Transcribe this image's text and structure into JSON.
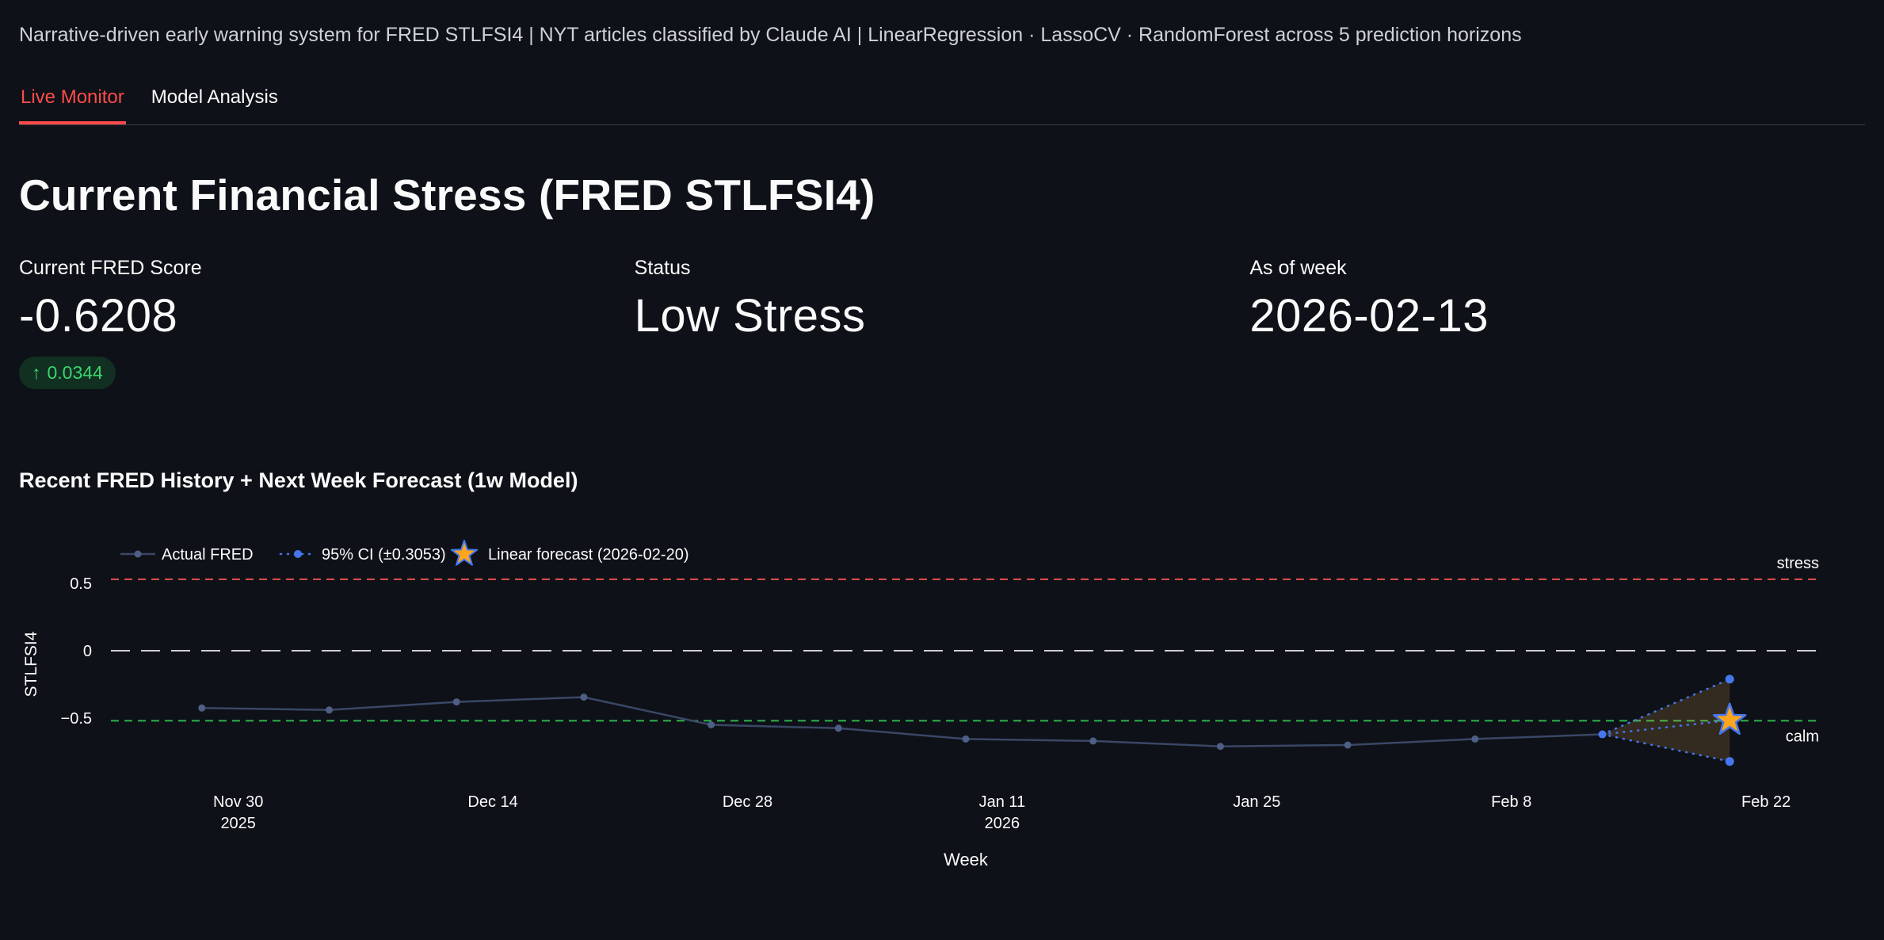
{
  "header": {
    "caption": "Narrative-driven early warning system for FRED STLFSI4 | NYT articles classified by Claude AI | LinearRegression · LassoCV · RandomForest across 5 prediction horizons"
  },
  "tabs": [
    {
      "label": "Live Monitor",
      "active": true
    },
    {
      "label": "Model Analysis",
      "active": false
    }
  ],
  "page_title": "Current Financial Stress (FRED STLFSI4)",
  "metrics": [
    {
      "label": "Current FRED Score",
      "value": "-0.6208",
      "delta_arrow": "↑",
      "delta": "0.0344",
      "delta_color": "#3dd56d"
    },
    {
      "label": "Status",
      "value": "Low Stress"
    },
    {
      "label": "As of week",
      "value": "2026-02-13"
    }
  ],
  "chart_data": {
    "type": "line",
    "title": "Recent FRED History + Next Week Forecast (1w Model)",
    "xlabel": "Week",
    "ylabel": "STLFSI4",
    "ylim": [
      -0.9,
      0.7
    ],
    "x_range": [
      "2025-11-23",
      "2026-02-25"
    ],
    "grid": false,
    "legend_position": "top-left",
    "x_ticks": [
      {
        "date": "2025-11-30",
        "label": "Nov 30",
        "sublabel": "2025"
      },
      {
        "date": "2025-12-14",
        "label": "Dec 14",
        "sublabel": ""
      },
      {
        "date": "2025-12-28",
        "label": "Dec 28",
        "sublabel": ""
      },
      {
        "date": "2026-01-11",
        "label": "Jan 11",
        "sublabel": "2026"
      },
      {
        "date": "2026-01-25",
        "label": "Jan 25",
        "sublabel": ""
      },
      {
        "date": "2026-02-08",
        "label": "Feb 8",
        "sublabel": ""
      },
      {
        "date": "2026-02-22",
        "label": "Feb 22",
        "sublabel": ""
      }
    ],
    "y_ticks": [
      {
        "value": 0.5,
        "label": "0.5"
      },
      {
        "value": 0,
        "label": "0"
      },
      {
        "value": -0.5,
        "label": "−0.5"
      }
    ],
    "series": [
      {
        "name": "Actual FRED",
        "type": "line+markers",
        "color": "#3a4766",
        "marker_color": "#4e5e85",
        "points": [
          {
            "date": "2025-11-28",
            "value": -0.425
          },
          {
            "date": "2025-12-05",
            "value": -0.44
          },
          {
            "date": "2025-12-12",
            "value": -0.38
          },
          {
            "date": "2025-12-19",
            "value": -0.345
          },
          {
            "date": "2025-12-26",
            "value": -0.55
          },
          {
            "date": "2026-01-02",
            "value": -0.575
          },
          {
            "date": "2026-01-09",
            "value": -0.655
          },
          {
            "date": "2026-01-16",
            "value": -0.67
          },
          {
            "date": "2026-01-23",
            "value": -0.71
          },
          {
            "date": "2026-01-30",
            "value": -0.7
          },
          {
            "date": "2026-02-06",
            "value": -0.6552
          },
          {
            "date": "2026-02-13",
            "value": -0.6208
          }
        ]
      }
    ],
    "forecast": {
      "name": "Linear forecast (2026-02-20)",
      "from_date": "2026-02-13",
      "from_value": -0.6208,
      "date": "2026-02-20",
      "value": -0.5164,
      "ci": 0.3053,
      "ci_upper": -0.2111,
      "ci_lower": -0.8217,
      "star_color": "#ffa51e",
      "line_color": "#4477ee",
      "cone_fill": "rgba(255,180,80,0.16)"
    },
    "thresholds": [
      {
        "label": "stress",
        "value": 0.53,
        "color": "#e4514f",
        "dash": "10 7"
      },
      {
        "label": "",
        "value": 0,
        "color": "#cfd0d6",
        "dash": "24 14"
      },
      {
        "label": "calm",
        "value": -0.52,
        "color": "#2fb34c",
        "dash": "10 7"
      }
    ],
    "legend": [
      {
        "type": "line-marker",
        "label": "Actual FRED"
      },
      {
        "type": "dotted-marker",
        "label": "95% CI (±0.3053)"
      },
      {
        "type": "star",
        "label": "Linear forecast (2026-02-20)"
      }
    ]
  }
}
